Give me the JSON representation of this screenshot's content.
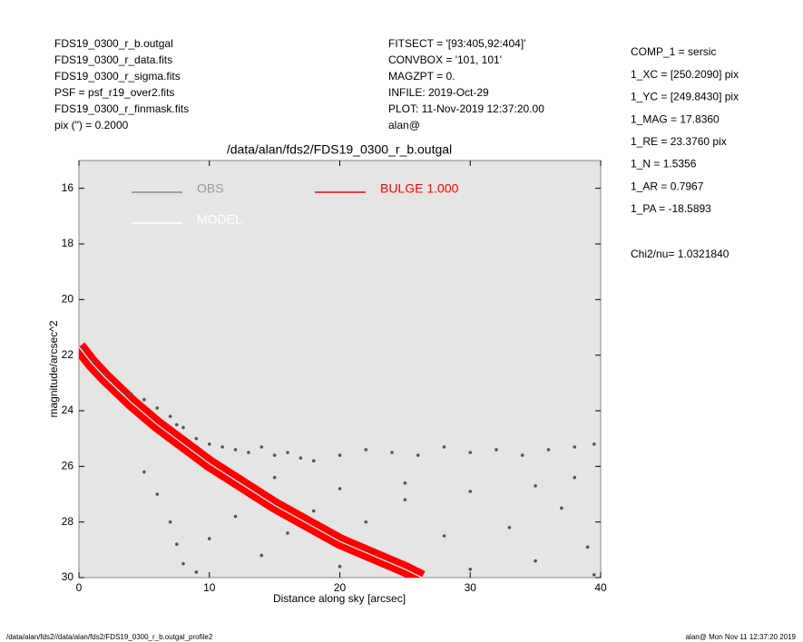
{
  "chart_data": {
    "type": "scatter",
    "title": "/data/alan/fds2/FDS19_0300_r_b.outgal",
    "x_label": "Distance along sky [arcsec]",
    "y_label": "magnitude/arcsec^2",
    "xlim": [
      0,
      40
    ],
    "ylim": [
      15,
      30
    ],
    "y_inverted": true,
    "xticks": [
      0,
      10,
      20,
      30,
      40
    ],
    "yticks": [
      16,
      18,
      20,
      22,
      24,
      26,
      28,
      30
    ],
    "header_left": [
      "FDS19_0300_r_b.outgal",
      "FDS19_0300_r_data.fits",
      "FDS19_0300_r_sigma.fits",
      "PSF    = psf_r19_over2.fits",
      "FDS19_0300_r_finmask.fits",
      "pix (\") =  0.2000"
    ],
    "header_middle": [
      "FITSECT = '[93:405,92:404]'",
      "CONVBOX = '101, 101'",
      "MAGZPT  =                0.",
      "INFILE: 2019-Oct-29",
      "PLOT: 11-Nov-2019 12:37:20.00",
      "alan@"
    ],
    "parameters": [
      "COMP_1  = sersic",
      "1_XC    = [250.2090] pix",
      "1_YC    = [249.8430] pix",
      "1_MAG   = 17.8360",
      "1_RE    = 23.3760 pix",
      "1_N     = 1.5356",
      "1_AR    = 0.7967",
      "1_PA    = -18.5893"
    ],
    "chi2": "Chi2/nu=       1.0321840",
    "footer_left": "/data/alan/fds2//data/alan/fds2/FDS19_0300_r_b.outgal_profile2",
    "footer_right": "alan@  Mon Nov 11 12:37:20 2019",
    "series": [
      {
        "name": "OBS",
        "color": "#555555",
        "kind": "points",
        "x": [
          0.3,
          1,
          1.5,
          2,
          2.5,
          3,
          3.5,
          4,
          5,
          6,
          7,
          7.5,
          8,
          9,
          10,
          11,
          12,
          13,
          14,
          15,
          16,
          17,
          18,
          20,
          22,
          24,
          26,
          28,
          30,
          32,
          34,
          36,
          38,
          39.5,
          5,
          6,
          7,
          7.5,
          8,
          9,
          10,
          12,
          14,
          16,
          18,
          20,
          22,
          25,
          28,
          30,
          33,
          35,
          37,
          39,
          39.5,
          15,
          20,
          25,
          30,
          35,
          38
        ],
        "values": [
          21.8,
          22.2,
          22.6,
          22.7,
          23.0,
          23.3,
          23.4,
          23.4,
          23.6,
          23.9,
          24.2,
          24.5,
          24.6,
          25.0,
          25.2,
          25.3,
          25.4,
          25.5,
          25.3,
          25.6,
          25.5,
          25.7,
          25.8,
          25.6,
          25.4,
          25.5,
          25.6,
          25.3,
          25.5,
          25.4,
          25.6,
          25.4,
          25.3,
          25.2,
          26.2,
          27.0,
          28.0,
          28.8,
          29.5,
          29.8,
          28.6,
          27.8,
          29.2,
          28.4,
          27.6,
          29.6,
          28.0,
          27.2,
          28.5,
          29.7,
          28.2,
          29.4,
          27.5,
          28.9,
          29.9,
          26.4,
          26.8,
          26.6,
          26.9,
          26.7,
          26.4
        ]
      },
      {
        "name": "MODEL",
        "color": "#ffffff",
        "kind": "line",
        "x": [
          0,
          1,
          2,
          4,
          6,
          8,
          10,
          15,
          20,
          25,
          26.3
        ],
        "values": [
          21.7,
          22.3,
          22.8,
          23.7,
          24.5,
          25.2,
          25.9,
          27.4,
          28.7,
          29.7,
          30
        ]
      },
      {
        "name": "BULGE  1.000",
        "color": "#ff0000",
        "kind": "band",
        "x": [
          0,
          1,
          2,
          4,
          6,
          8,
          10,
          15,
          20,
          25,
          26.3
        ],
        "values": [
          21.7,
          22.3,
          22.8,
          23.7,
          24.5,
          25.2,
          25.9,
          27.4,
          28.7,
          29.7,
          30
        ]
      }
    ]
  }
}
